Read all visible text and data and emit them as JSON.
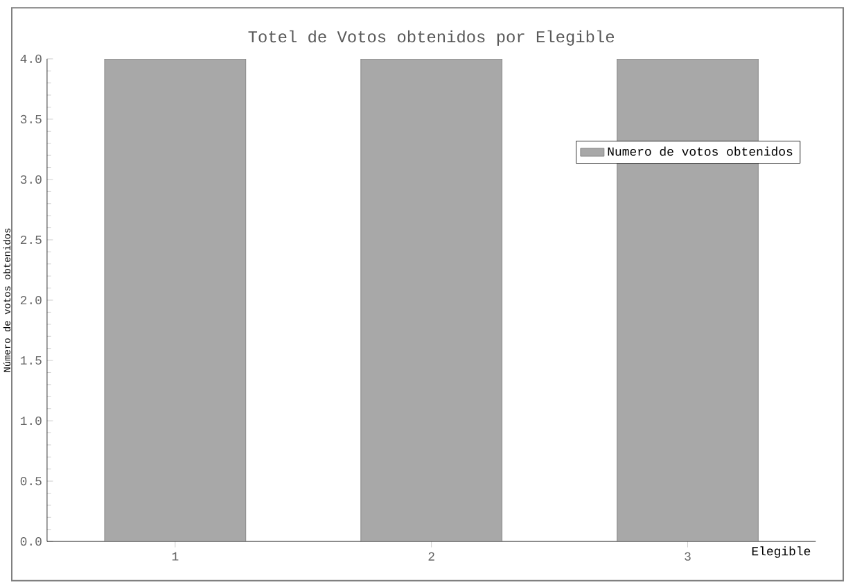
{
  "chart_data": {
    "type": "bar",
    "title": "Totel de Votos obtenidos por Elegible",
    "xlabel": "Elegible",
    "ylabel": "Número de votos obtenidos",
    "categories": [
      "1",
      "2",
      "3"
    ],
    "series": [
      {
        "name": "Numero de votos obtenidos",
        "color": "#a8a8a8",
        "values": [
          4.0,
          4.0,
          4.0
        ]
      }
    ],
    "ylim": [
      0,
      4
    ],
    "yticks": [
      {
        "value": 0,
        "label": "0.0"
      },
      0.5,
      {
        "value": 1,
        "label": "1.0"
      },
      1.5,
      {
        "value": 2,
        "label": "2.0"
      },
      2.5,
      {
        "value": 3,
        "label": "3.0"
      },
      3.5,
      {
        "value": 4,
        "label": "4.0"
      }
    ],
    "legend": "top right",
    "grid": false
  }
}
